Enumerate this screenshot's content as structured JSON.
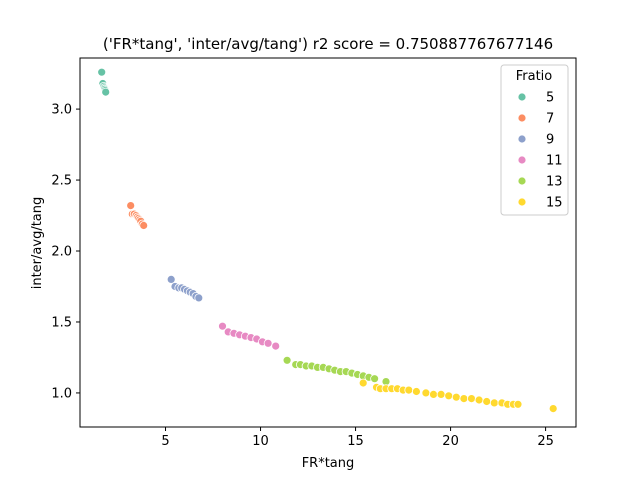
{
  "chart_data": {
    "type": "scatter",
    "title": "('FR*tang', 'inter/avg/tang') r2 score = 0.750887767677146",
    "xlabel": "FR*tang",
    "ylabel": "inter/avg/tang",
    "xlim": [
      0.5,
      26.6
    ],
    "ylim": [
      0.76,
      3.36
    ],
    "xticks": [
      5,
      10,
      15,
      20,
      25
    ],
    "xtick_labels": [
      "5",
      "10",
      "15",
      "20",
      "25"
    ],
    "yticks": [
      1.0,
      1.5,
      2.0,
      2.5,
      3.0
    ],
    "ytick_labels": [
      "1.0",
      "1.5",
      "2.0",
      "2.5",
      "3.0"
    ],
    "grid": false,
    "legend": {
      "title": "Fratio",
      "placement": "top-right"
    },
    "series": [
      {
        "name": "5",
        "color": "#66c2a5",
        "points": [
          [
            1.64,
            3.26
          ],
          [
            1.7,
            3.18
          ],
          [
            1.74,
            3.16
          ],
          [
            1.78,
            3.15
          ],
          [
            1.8,
            3.14
          ],
          [
            1.83,
            3.13
          ],
          [
            1.85,
            3.12
          ]
        ]
      },
      {
        "name": "7",
        "color": "#fc8d62",
        "points": [
          [
            3.17,
            2.32
          ],
          [
            3.25,
            2.26
          ],
          [
            3.35,
            2.26
          ],
          [
            3.45,
            2.25
          ],
          [
            3.52,
            2.24
          ],
          [
            3.58,
            2.23
          ],
          [
            3.64,
            2.22
          ],
          [
            3.7,
            2.21
          ],
          [
            3.78,
            2.19
          ],
          [
            3.85,
            2.18
          ]
        ]
      },
      {
        "name": "9",
        "color": "#8da0cb",
        "points": [
          [
            5.3,
            1.8
          ],
          [
            5.5,
            1.75
          ],
          [
            5.7,
            1.74
          ],
          [
            5.85,
            1.74
          ],
          [
            6.0,
            1.73
          ],
          [
            6.15,
            1.72
          ],
          [
            6.3,
            1.71
          ],
          [
            6.45,
            1.7
          ],
          [
            6.6,
            1.68
          ],
          [
            6.75,
            1.67
          ]
        ]
      },
      {
        "name": "11",
        "color": "#e78ac3",
        "points": [
          [
            8.0,
            1.47
          ],
          [
            8.3,
            1.43
          ],
          [
            8.6,
            1.42
          ],
          [
            8.9,
            1.41
          ],
          [
            9.2,
            1.4
          ],
          [
            9.5,
            1.39
          ],
          [
            9.8,
            1.38
          ],
          [
            10.1,
            1.36
          ],
          [
            10.4,
            1.35
          ],
          [
            10.8,
            1.33
          ]
        ]
      },
      {
        "name": "13",
        "color": "#a6d854",
        "points": [
          [
            11.4,
            1.23
          ],
          [
            11.85,
            1.2
          ],
          [
            12.1,
            1.2
          ],
          [
            12.4,
            1.19
          ],
          [
            12.7,
            1.19
          ],
          [
            13.0,
            1.18
          ],
          [
            13.3,
            1.18
          ],
          [
            13.6,
            1.17
          ],
          [
            13.9,
            1.16
          ],
          [
            14.2,
            1.15
          ],
          [
            14.5,
            1.15
          ],
          [
            14.8,
            1.14
          ],
          [
            15.1,
            1.13
          ],
          [
            15.4,
            1.12
          ],
          [
            15.7,
            1.11
          ],
          [
            16.0,
            1.1
          ],
          [
            16.6,
            1.08
          ]
        ]
      },
      {
        "name": "15",
        "color": "#ffd92f",
        "points": [
          [
            15.4,
            1.07
          ],
          [
            16.1,
            1.04
          ],
          [
            16.3,
            1.03
          ],
          [
            16.6,
            1.03
          ],
          [
            16.9,
            1.03
          ],
          [
            17.2,
            1.03
          ],
          [
            17.5,
            1.02
          ],
          [
            17.8,
            1.02
          ],
          [
            18.2,
            1.01
          ],
          [
            18.7,
            1.0
          ],
          [
            19.1,
            0.99
          ],
          [
            19.5,
            0.99
          ],
          [
            19.9,
            0.98
          ],
          [
            20.3,
            0.97
          ],
          [
            20.7,
            0.96
          ],
          [
            21.1,
            0.96
          ],
          [
            21.5,
            0.95
          ],
          [
            21.9,
            0.94
          ],
          [
            22.3,
            0.93
          ],
          [
            22.7,
            0.93
          ],
          [
            23.0,
            0.92
          ],
          [
            23.3,
            0.92
          ],
          [
            23.55,
            0.92
          ],
          [
            25.4,
            0.89
          ]
        ]
      }
    ]
  }
}
